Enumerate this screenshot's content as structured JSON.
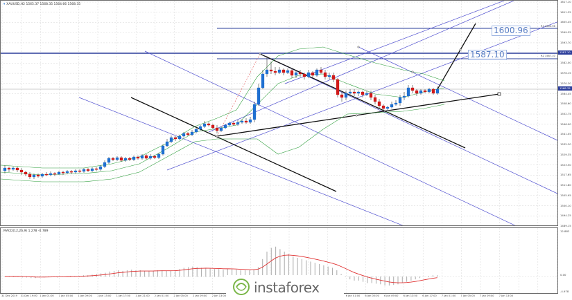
{
  "chart": {
    "title": "XAUUSD,H2  1565.37 1568.35 1564.66 1568.35",
    "indicator_title": "MACD(12,26,9) 1.278 -0.789",
    "symbol": "XAUUSD",
    "timeframe": "H2",
    "current_price": "1568.35",
    "colors": {
      "bull_candle": "#1f6fd1",
      "bear_candle": "#d11a1a",
      "bollinger": "#2e9e3c",
      "channel": "#5050d0",
      "trend_line": "#111111",
      "macd_signal": "#e03030",
      "macd_hist": "#b0b0b0",
      "level_line": "#2a3c9a",
      "current_price_tag": "#2a3c9a"
    }
  },
  "levels": {
    "upper_label": "1600.96",
    "lower_label": "1587.10",
    "upper_tag": "R1 1600.96",
    "lower_tag": "R2 1587.10"
  },
  "price_axis": [
    "1617.10",
    "1611.25",
    "1605.45",
    "1599.55",
    "1593.70",
    "1587.85",
    "1582.00",
    "1576.15",
    "1570.30",
    "1564.45",
    "1558.60",
    "1552.75",
    "1546.90",
    "1541.05",
    "1535.20",
    "1529.35",
    "1523.50",
    "1517.65",
    "1511.80",
    "1505.95",
    "1500.10",
    "1494.25",
    "1489.15"
  ],
  "macd_axis": [
    "12.883",
    "0.00",
    "-4.978"
  ],
  "time_axis": [
    "31 Dec 2019",
    "31 Dec 19:00",
    "1 Jan 01:00",
    "1 Jan 05:00",
    "1 Jan 09:00",
    "1 Jan 13:00",
    "1 Jan 17:00",
    "1 Jan 21:00",
    "2 Jan 01:00",
    "2 Jan 05:00",
    "2 Jan 09:00",
    "2 Jan 13:00",
    "2 Jan 17:00",
    "3 Jan 01:00",
    "3 Jan 05:00",
    "3 Jan 09:00",
    "3 Jan 13:00",
    "3 Jan 17:00",
    "6 Jan 01:00",
    "6 Jan 05:00",
    "6 Jan 09:00",
    "6 Jan 13:00",
    "6 Jan 17:00",
    "7 Jan 01:00",
    "7 Jan 05:00",
    "7 Jan 09:00",
    "7 Jan 13:00"
  ],
  "watermark": {
    "brand": "instaforex"
  }
}
